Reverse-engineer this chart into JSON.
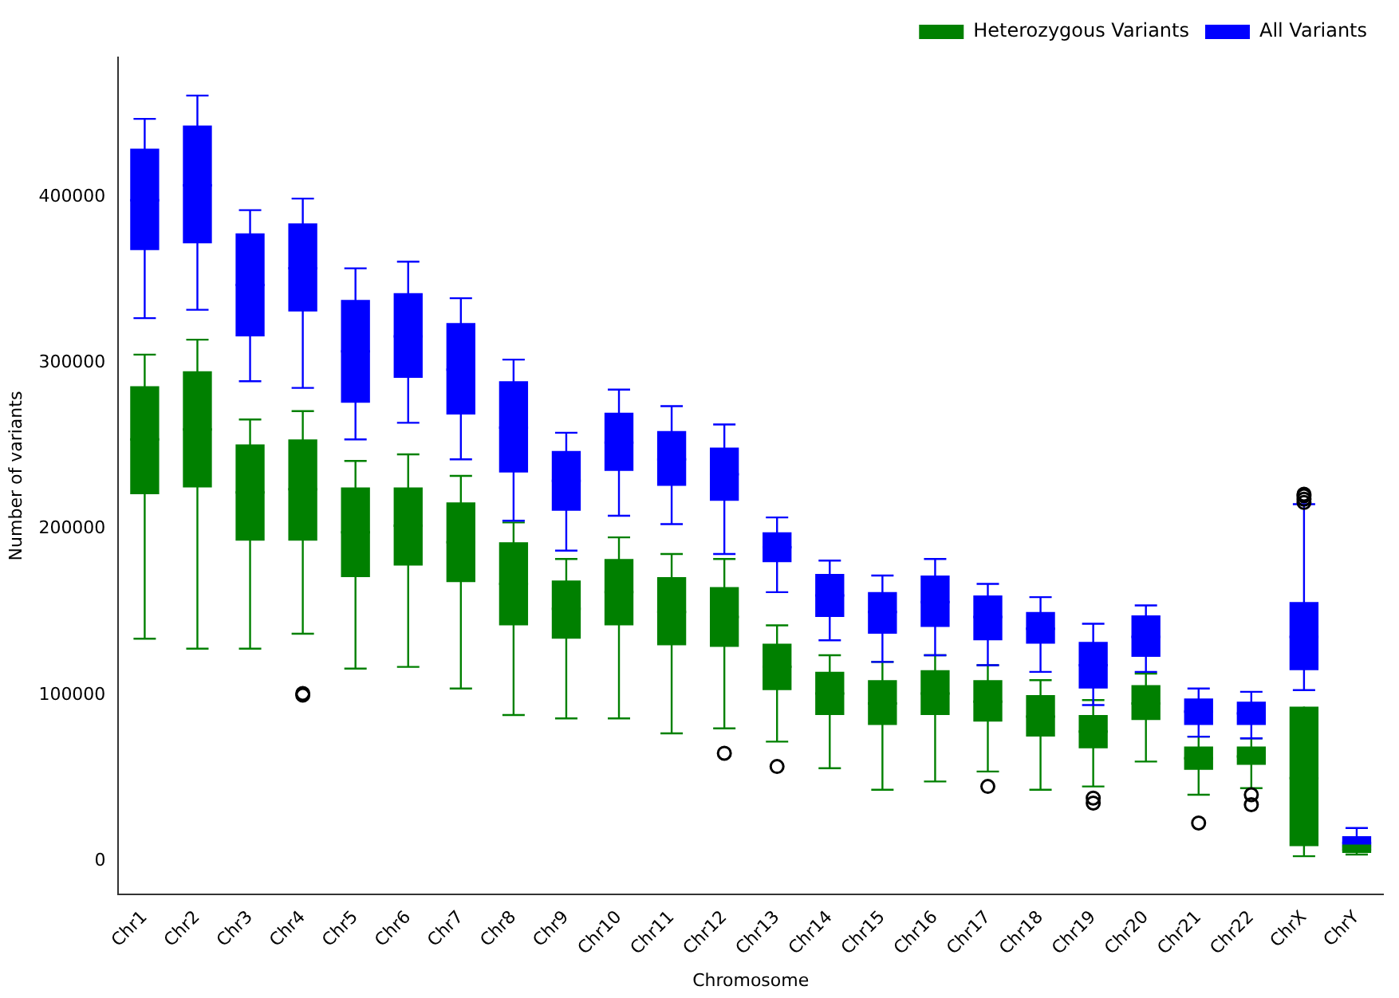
{
  "chart_data": {
    "type": "box",
    "xlabel": "Chromosome",
    "ylabel": "Number of variants",
    "categories": [
      "Chr1",
      "Chr2",
      "Chr3",
      "Chr4",
      "Chr5",
      "Chr6",
      "Chr7",
      "Chr8",
      "Chr9",
      "Chr10",
      "Chr11",
      "Chr12",
      "Chr13",
      "Chr14",
      "Chr15",
      "Chr16",
      "Chr17",
      "Chr18",
      "Chr19",
      "Chr20",
      "Chr21",
      "Chr22",
      "ChrX",
      "ChrY"
    ],
    "ylim": [
      -20000,
      484000
    ],
    "yticks": [
      0,
      100000,
      200000,
      300000,
      400000
    ],
    "grid": false,
    "legend": "top right",
    "series": [
      {
        "name": "Heterozygous Variants",
        "color": "#008000",
        "boxes": [
          {
            "low": 134000,
            "q1": 221000,
            "median": 254000,
            "q3": 286000,
            "high": 305000
          },
          {
            "low": 128000,
            "q1": 225000,
            "median": 260000,
            "q3": 295000,
            "high": 314000
          },
          {
            "low": 128000,
            "q1": 193000,
            "median": 222000,
            "q3": 251000,
            "high": 266000
          },
          {
            "low": 137000,
            "q1": 193000,
            "median": 224000,
            "q3": 254000,
            "high": 271000,
            "outliers": [
              100000,
              101000
            ]
          },
          {
            "low": 116000,
            "q1": 171000,
            "median": 198000,
            "q3": 225000,
            "high": 241000
          },
          {
            "low": 117000,
            "q1": 178000,
            "median": 202000,
            "q3": 225000,
            "high": 245000
          },
          {
            "low": 104000,
            "q1": 168000,
            "median": 192000,
            "q3": 216000,
            "high": 232000
          },
          {
            "low": 88000,
            "q1": 142000,
            "median": 167000,
            "q3": 192000,
            "high": 204000
          },
          {
            "low": 86000,
            "q1": 134000,
            "median": 152000,
            "q3": 169000,
            "high": 182000
          },
          {
            "low": 86000,
            "q1": 142000,
            "median": 162000,
            "q3": 182000,
            "high": 195000
          },
          {
            "low": 77000,
            "q1": 130000,
            "median": 150000,
            "q3": 171000,
            "high": 185000
          },
          {
            "low": 80000,
            "q1": 129000,
            "median": 147000,
            "q3": 165000,
            "high": 182000,
            "outliers": [
              65000
            ]
          },
          {
            "low": 72000,
            "q1": 103000,
            "median": 117000,
            "q3": 131000,
            "high": 142000,
            "outliers": [
              57000
            ]
          },
          {
            "low": 56000,
            "q1": 88000,
            "median": 101000,
            "q3": 114000,
            "high": 124000
          },
          {
            "low": 43000,
            "q1": 82000,
            "median": 95000,
            "q3": 109000,
            "high": 120000
          },
          {
            "low": 48000,
            "q1": 88000,
            "median": 101000,
            "q3": 115000,
            "high": 124000
          },
          {
            "low": 54000,
            "q1": 84000,
            "median": 96000,
            "q3": 109000,
            "high": 118000,
            "outliers": [
              45000
            ]
          },
          {
            "low": 43000,
            "q1": 75000,
            "median": 87000,
            "q3": 100000,
            "high": 109000
          },
          {
            "low": 45000,
            "q1": 68000,
            "median": 78000,
            "q3": 88000,
            "high": 97000,
            "outliers": [
              38000,
              35000
            ]
          },
          {
            "low": 60000,
            "q1": 85000,
            "median": 95000,
            "q3": 106000,
            "high": 113000
          },
          {
            "low": 40000,
            "q1": 55000,
            "median": 62000,
            "q3": 69000,
            "high": 75000,
            "outliers": [
              23000
            ]
          },
          {
            "low": 44000,
            "q1": 58000,
            "median": 63000,
            "q3": 69000,
            "high": 74000,
            "outliers": [
              40000,
              34000
            ]
          },
          {
            "low": 3000,
            "q1": 9000,
            "median": 50000,
            "q3": 93000,
            "high": 93000
          },
          {
            "low": 4000,
            "q1": 5000,
            "median": 7000,
            "q3": 10000,
            "high": 12000
          }
        ]
      },
      {
        "name": "All Variants",
        "color": "#0000ff",
        "boxes": [
          {
            "low": 327000,
            "q1": 368000,
            "median": 398000,
            "q3": 429000,
            "high": 447000
          },
          {
            "low": 332000,
            "q1": 372000,
            "median": 407000,
            "q3": 443000,
            "high": 461000
          },
          {
            "low": 289000,
            "q1": 316000,
            "median": 347000,
            "q3": 378000,
            "high": 392000
          },
          {
            "low": 285000,
            "q1": 331000,
            "median": 357000,
            "q3": 384000,
            "high": 399000
          },
          {
            "low": 254000,
            "q1": 276000,
            "median": 307000,
            "q3": 338000,
            "high": 357000
          },
          {
            "low": 264000,
            "q1": 291000,
            "median": 316000,
            "q3": 342000,
            "high": 361000
          },
          {
            "low": 242000,
            "q1": 269000,
            "median": 296000,
            "q3": 324000,
            "high": 339000
          },
          {
            "low": 205000,
            "q1": 234000,
            "median": 261000,
            "q3": 289000,
            "high": 302000
          },
          {
            "low": 187000,
            "q1": 211000,
            "median": 229000,
            "q3": 247000,
            "high": 258000
          },
          {
            "low": 208000,
            "q1": 235000,
            "median": 252000,
            "q3": 270000,
            "high": 284000
          },
          {
            "low": 203000,
            "q1": 226000,
            "median": 242000,
            "q3": 259000,
            "high": 274000
          },
          {
            "low": 185000,
            "q1": 217000,
            "median": 233000,
            "q3": 249000,
            "high": 263000
          },
          {
            "low": 162000,
            "q1": 180000,
            "median": 189000,
            "q3": 198000,
            "high": 207000
          },
          {
            "low": 133000,
            "q1": 147000,
            "median": 160000,
            "q3": 173000,
            "high": 181000
          },
          {
            "low": 120000,
            "q1": 137000,
            "median": 150000,
            "q3": 162000,
            "high": 172000
          },
          {
            "low": 124000,
            "q1": 141000,
            "median": 156000,
            "q3": 172000,
            "high": 182000
          },
          {
            "low": 118000,
            "q1": 133000,
            "median": 147000,
            "q3": 160000,
            "high": 167000
          },
          {
            "low": 114000,
            "q1": 131000,
            "median": 140000,
            "q3": 150000,
            "high": 159000
          },
          {
            "low": 94000,
            "q1": 104000,
            "median": 118000,
            "q3": 132000,
            "high": 143000
          },
          {
            "low": 114000,
            "q1": 123000,
            "median": 135000,
            "q3": 148000,
            "high": 154000
          },
          {
            "low": 75000,
            "q1": 82000,
            "median": 90000,
            "q3": 98000,
            "high": 104000
          },
          {
            "low": 74000,
            "q1": 82000,
            "median": 89000,
            "q3": 96000,
            "high": 102000
          },
          {
            "low": 103000,
            "q1": 115000,
            "median": 135000,
            "q3": 156000,
            "high": 215000,
            "outliers": [
              216000,
              218000,
              220000,
              221000
            ]
          },
          {
            "low": 6000,
            "q1": 8000,
            "median": 11000,
            "q3": 15000,
            "high": 20000
          }
        ]
      }
    ]
  }
}
